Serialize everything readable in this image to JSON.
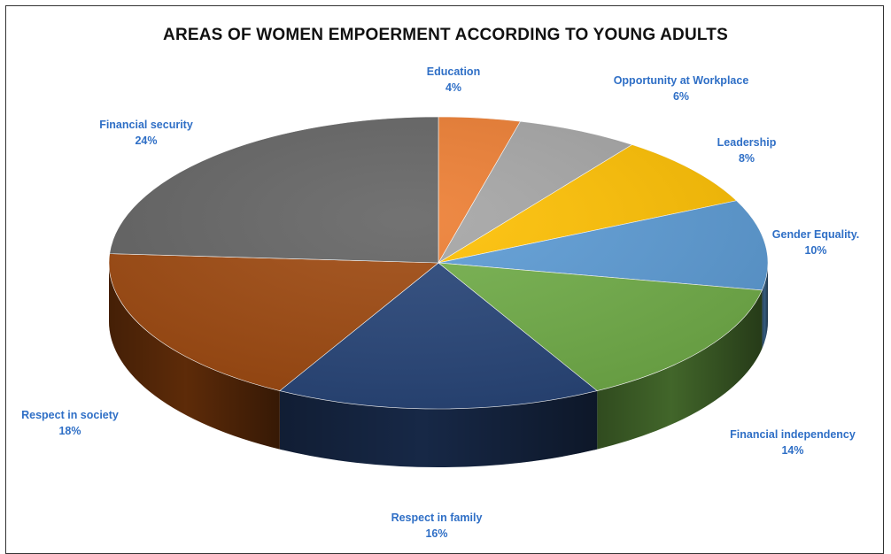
{
  "chart_data": {
    "type": "pie",
    "title": "AREAS OF WOMEN EMPOERMENT ACCORDING TO YOUNG ADULTS",
    "label_color": "#2f6fc6",
    "slices": [
      {
        "name": "Education",
        "value": 4,
        "label": "4%",
        "color": "#ed7d31"
      },
      {
        "name": "Opportunity at Workplace",
        "value": 6,
        "label": "6%",
        "color": "#a5a5a5"
      },
      {
        "name": "Leadership",
        "value": 8,
        "label": "8%",
        "color": "#ffc000"
      },
      {
        "name": "Gender Equality.",
        "value": 10,
        "label": "10%",
        "color": "#5b9bd5"
      },
      {
        "name": "Financial independency",
        "value": 14,
        "label": "14%",
        "color": "#70ad47"
      },
      {
        "name": "Respect in family",
        "value": 16,
        "label": "16%",
        "color": "#264478"
      },
      {
        "name": "Respect in society",
        "value": 18,
        "label": "18%",
        "color": "#9e480e"
      },
      {
        "name": "Financial security",
        "value": 24,
        "label": "24%",
        "color": "#636363"
      }
    ]
  }
}
